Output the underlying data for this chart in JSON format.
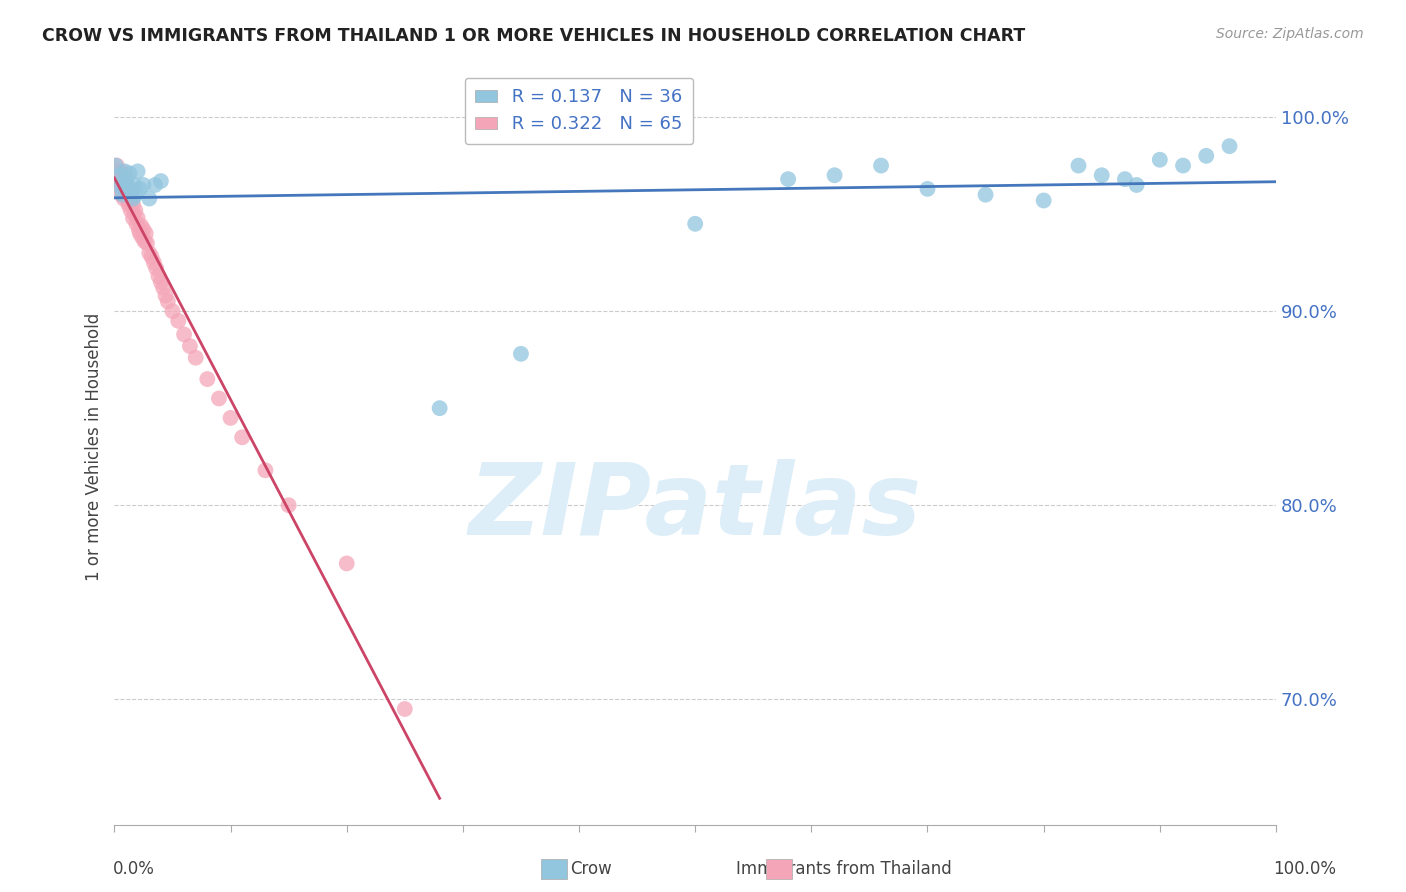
{
  "title": "CROW VS IMMIGRANTS FROM THAILAND 1 OR MORE VEHICLES IN HOUSEHOLD CORRELATION CHART",
  "source_text": "Source: ZipAtlas.com",
  "ylabel": "1 or more Vehicles in Household",
  "legend_label1": "Crow",
  "legend_label2": "Immigrants from Thailand",
  "R1": 0.137,
  "N1": 36,
  "R2": 0.322,
  "N2": 65,
  "blue_color": "#92c5de",
  "pink_color": "#f4a6b8",
  "blue_line_color": "#4477bb",
  "pink_line_color": "#cc4466",
  "watermark_text": "ZIPatlas",
  "watermark_color": "#ddeef8",
  "background_color": "#ffffff",
  "grid_color": "#cccccc",
  "crow_x": [
    0.001,
    0.003,
    0.005,
    0.007,
    0.008,
    0.009,
    0.01,
    0.011,
    0.013,
    0.015,
    0.016,
    0.017,
    0.018,
    0.02,
    0.022,
    0.025,
    0.03,
    0.035,
    0.04,
    0.28,
    0.35,
    0.5,
    0.58,
    0.62,
    0.66,
    0.7,
    0.75,
    0.8,
    0.83,
    0.85,
    0.87,
    0.88,
    0.9,
    0.92,
    0.94,
    0.96
  ],
  "crow_y": [
    0.975,
    0.965,
    0.97,
    0.96,
    0.963,
    0.972,
    0.968,
    0.966,
    0.971,
    0.962,
    0.958,
    0.965,
    0.96,
    0.972,
    0.963,
    0.965,
    0.958,
    0.965,
    0.967,
    0.85,
    0.878,
    0.945,
    0.968,
    0.97,
    0.975,
    0.963,
    0.96,
    0.957,
    0.975,
    0.97,
    0.968,
    0.965,
    0.978,
    0.975,
    0.98,
    0.985
  ],
  "thai_x": [
    0.001,
    0.001,
    0.002,
    0.002,
    0.003,
    0.003,
    0.004,
    0.004,
    0.005,
    0.005,
    0.006,
    0.006,
    0.007,
    0.007,
    0.008,
    0.008,
    0.009,
    0.009,
    0.01,
    0.01,
    0.011,
    0.011,
    0.012,
    0.012,
    0.013,
    0.013,
    0.014,
    0.015,
    0.015,
    0.016,
    0.016,
    0.017,
    0.018,
    0.019,
    0.02,
    0.021,
    0.022,
    0.023,
    0.024,
    0.025,
    0.026,
    0.027,
    0.028,
    0.03,
    0.032,
    0.034,
    0.036,
    0.038,
    0.04,
    0.042,
    0.044,
    0.046,
    0.05,
    0.055,
    0.06,
    0.065,
    0.07,
    0.08,
    0.09,
    0.1,
    0.11,
    0.13,
    0.15,
    0.2,
    0.25
  ],
  "thai_y": [
    0.972,
    0.968,
    0.975,
    0.97,
    0.965,
    0.971,
    0.966,
    0.968,
    0.97,
    0.965,
    0.96,
    0.972,
    0.962,
    0.968,
    0.965,
    0.958,
    0.963,
    0.97,
    0.96,
    0.965,
    0.958,
    0.962,
    0.955,
    0.96,
    0.955,
    0.96,
    0.952,
    0.958,
    0.962,
    0.955,
    0.948,
    0.95,
    0.952,
    0.945,
    0.948,
    0.942,
    0.94,
    0.944,
    0.938,
    0.942,
    0.936,
    0.94,
    0.935,
    0.93,
    0.928,
    0.925,
    0.922,
    0.918,
    0.915,
    0.912,
    0.908,
    0.905,
    0.9,
    0.895,
    0.888,
    0.882,
    0.876,
    0.865,
    0.855,
    0.845,
    0.835,
    0.818,
    0.8,
    0.77,
    0.695
  ],
  "xlim": [
    0.0,
    1.0
  ],
  "ylim": [
    0.635,
    1.025
  ],
  "yticks": [
    0.7,
    0.8,
    0.9,
    1.0
  ],
  "ytick_labels": [
    "70.0%",
    "80.0%",
    "90.0%",
    "100.0%"
  ],
  "xtick_positions": [
    0.0,
    0.1,
    0.2,
    0.3,
    0.4,
    0.5,
    0.6,
    0.7,
    0.8,
    0.9,
    1.0
  ]
}
